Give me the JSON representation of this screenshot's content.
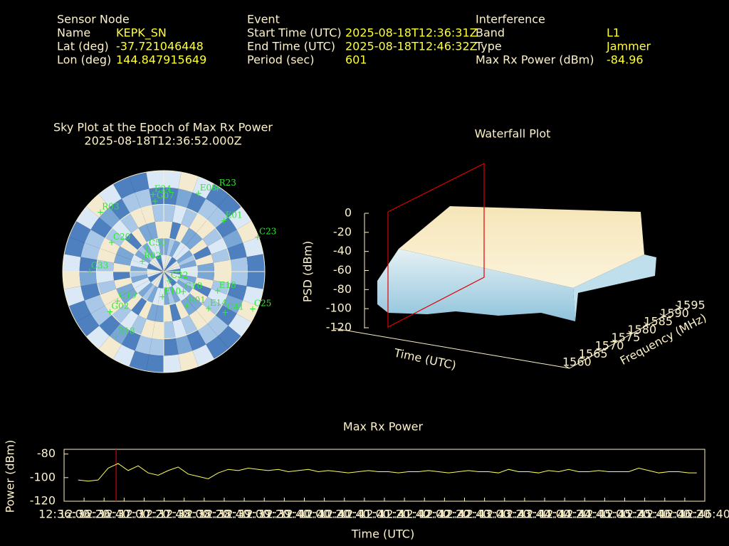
{
  "header": {
    "columns": [
      {
        "title": "Sensor Node",
        "fields": [
          {
            "label": "Name",
            "value": "KEPK_SN"
          },
          {
            "label": "Lat (deg)",
            "value": "-37.721046448"
          },
          {
            "label": "Lon (deg)",
            "value": "144.847915649"
          }
        ]
      },
      {
        "title": "Event",
        "fields": [
          {
            "label": "Start Time (UTC)",
            "value": "2025-08-18T12:36:31Z"
          },
          {
            "label": "End Time (UTC)",
            "value": "2025-08-18T12:46:32Z"
          },
          {
            "label": "Period (sec)",
            "value": "601"
          }
        ]
      },
      {
        "title": "Interference",
        "fields": [
          {
            "label": "Band",
            "value": "L1"
          },
          {
            "label": "Type",
            "value": "Jammer"
          },
          {
            "label": "Max Rx Power (dBm)",
            "value": "-84.96"
          }
        ]
      }
    ]
  },
  "chart_data": [
    {
      "type": "polar",
      "title": "Sky Plot at the Epoch of Max Rx Power",
      "subtitle": "2025-08-18T12:36:52.000Z",
      "satellites": [
        {
          "name": "R23",
          "az": 33,
          "el": 2
        },
        {
          "name": "E24",
          "az": 352,
          "el": 21
        },
        {
          "name": "G07",
          "az": 353,
          "el": 27
        },
        {
          "name": "R03",
          "az": 313,
          "el": 13
        },
        {
          "name": "C23",
          "az": 70,
          "el": 1
        },
        {
          "name": "E01",
          "az": 50,
          "el": 20
        },
        {
          "name": "C20",
          "az": 299,
          "el": 37
        },
        {
          "name": "C50",
          "az": 324,
          "el": 65
        },
        {
          "name": "R02",
          "az": 295,
          "el": 69
        },
        {
          "name": "C32",
          "az": 150,
          "el": 80
        },
        {
          "name": "E10",
          "az": 183,
          "el": 67
        },
        {
          "name": "G10",
          "az": 136,
          "el": 65
        },
        {
          "name": "R01",
          "az": 146,
          "el": 53
        },
        {
          "name": "E18",
          "az": 110,
          "el": 39
        },
        {
          "name": "E14",
          "az": 130,
          "el": 38
        },
        {
          "name": "C41",
          "az": 124,
          "el": 24
        },
        {
          "name": "C25",
          "az": 113,
          "el": 4
        },
        {
          "name": "G02",
          "az": 233,
          "el": 30
        },
        {
          "name": "C19",
          "az": 237,
          "el": 41
        },
        {
          "name": "R18",
          "az": 216,
          "el": 18
        },
        {
          "name": "E08",
          "az": 24,
          "el": 14
        },
        {
          "name": "C33",
          "az": 270,
          "el": 24
        }
      ]
    },
    {
      "type": "surface",
      "title": "Waterfall Plot",
      "zlabel": "PSD (dBm)",
      "ylabel": "Frequency (MHz)",
      "xlabel": "Time (UTC)",
      "zlim": [
        -120,
        0
      ],
      "zticks": [
        -120,
        -100,
        -80,
        -60,
        -40,
        -20,
        0
      ],
      "ylim": [
        1560,
        1595
      ],
      "yticks": [
        1560,
        1565,
        1570,
        1575,
        1580,
        1585,
        1590,
        1595
      ]
    },
    {
      "type": "line",
      "title": "Max Rx Power",
      "xlabel": "Time (UTC)",
      "ylabel": "Power (dBm)",
      "xlim": [
        0,
        640
      ],
      "xticks": [
        {
          "value": 0,
          "label": "12:36:00"
        },
        {
          "value": 20,
          "label": "12:36:20"
        },
        {
          "value": 40,
          "label": "12:36:40"
        },
        {
          "value": 60,
          "label": "12:37:00"
        },
        {
          "value": 80,
          "label": "12:37:20"
        },
        {
          "value": 100,
          "label": "12:37:40"
        },
        {
          "value": 120,
          "label": "12:38:00"
        },
        {
          "value": 140,
          "label": "12:38:20"
        },
        {
          "value": 160,
          "label": "12:38:40"
        },
        {
          "value": 180,
          "label": "12:39:00"
        },
        {
          "value": 200,
          "label": "12:39:20"
        },
        {
          "value": 220,
          "label": "12:39:40"
        },
        {
          "value": 240,
          "label": "12:40:00"
        },
        {
          "value": 260,
          "label": "12:40:20"
        },
        {
          "value": 280,
          "label": "12:40:40"
        },
        {
          "value": 300,
          "label": "12:41:00"
        },
        {
          "value": 320,
          "label": "12:41:20"
        },
        {
          "value": 340,
          "label": "12:41:40"
        },
        {
          "value": 360,
          "label": "12:42:00"
        },
        {
          "value": 380,
          "label": "12:42:20"
        },
        {
          "value": 400,
          "label": "12:42:40"
        },
        {
          "value": 420,
          "label": "12:43:00"
        },
        {
          "value": 440,
          "label": "12:43:20"
        },
        {
          "value": 460,
          "label": "12:43:40"
        },
        {
          "value": 480,
          "label": "12:44:00"
        },
        {
          "value": 500,
          "label": "12:44:20"
        },
        {
          "value": 520,
          "label": "12:44:40"
        },
        {
          "value": 540,
          "label": "12:45:00"
        },
        {
          "value": 560,
          "label": "12:45:20"
        },
        {
          "value": 580,
          "label": "12:45:40"
        },
        {
          "value": 600,
          "label": "12:46:00"
        },
        {
          "value": 620,
          "label": "12:46:20"
        },
        {
          "value": 640,
          "label": "12:46:40"
        }
      ],
      "ylim": [
        -120,
        -76
      ],
      "yticks": [
        -120,
        -100,
        -80
      ],
      "color": "#ffff60",
      "epoch_marker": 52,
      "marker_color": "#e00000",
      "x": [
        14,
        24,
        34,
        44,
        54,
        64,
        74,
        84,
        94,
        104,
        114,
        124,
        134,
        144,
        154,
        164,
        174,
        184,
        194,
        204,
        214,
        224,
        234,
        244,
        254,
        264,
        274,
        284,
        294,
        304,
        314,
        324,
        334,
        344,
        354,
        364,
        374,
        384,
        394,
        404,
        414,
        424,
        434,
        444,
        454,
        464,
        474,
        484,
        494,
        504,
        514,
        524,
        534,
        544,
        554,
        564,
        574,
        584,
        594,
        604,
        614,
        624,
        632
      ],
      "values": [
        -102,
        -103,
        -102,
        -92,
        -88,
        -94,
        -90,
        -96,
        -98,
        -94,
        -91,
        -97,
        -99,
        -101,
        -96,
        -93,
        -94,
        -92,
        -93,
        -94,
        -93,
        -95,
        -94,
        -93,
        -95,
        -94,
        -95,
        -96,
        -95,
        -94,
        -95,
        -95,
        -96,
        -95,
        -95,
        -94,
        -95,
        -96,
        -95,
        -94,
        -95,
        -95,
        -96,
        -93,
        -95,
        -95,
        -96,
        -94,
        -95,
        -93,
        -95,
        -95,
        -94,
        -95,
        -95,
        -95,
        -92,
        -94,
        -96,
        -95,
        -95,
        -96,
        -96
      ]
    }
  ]
}
